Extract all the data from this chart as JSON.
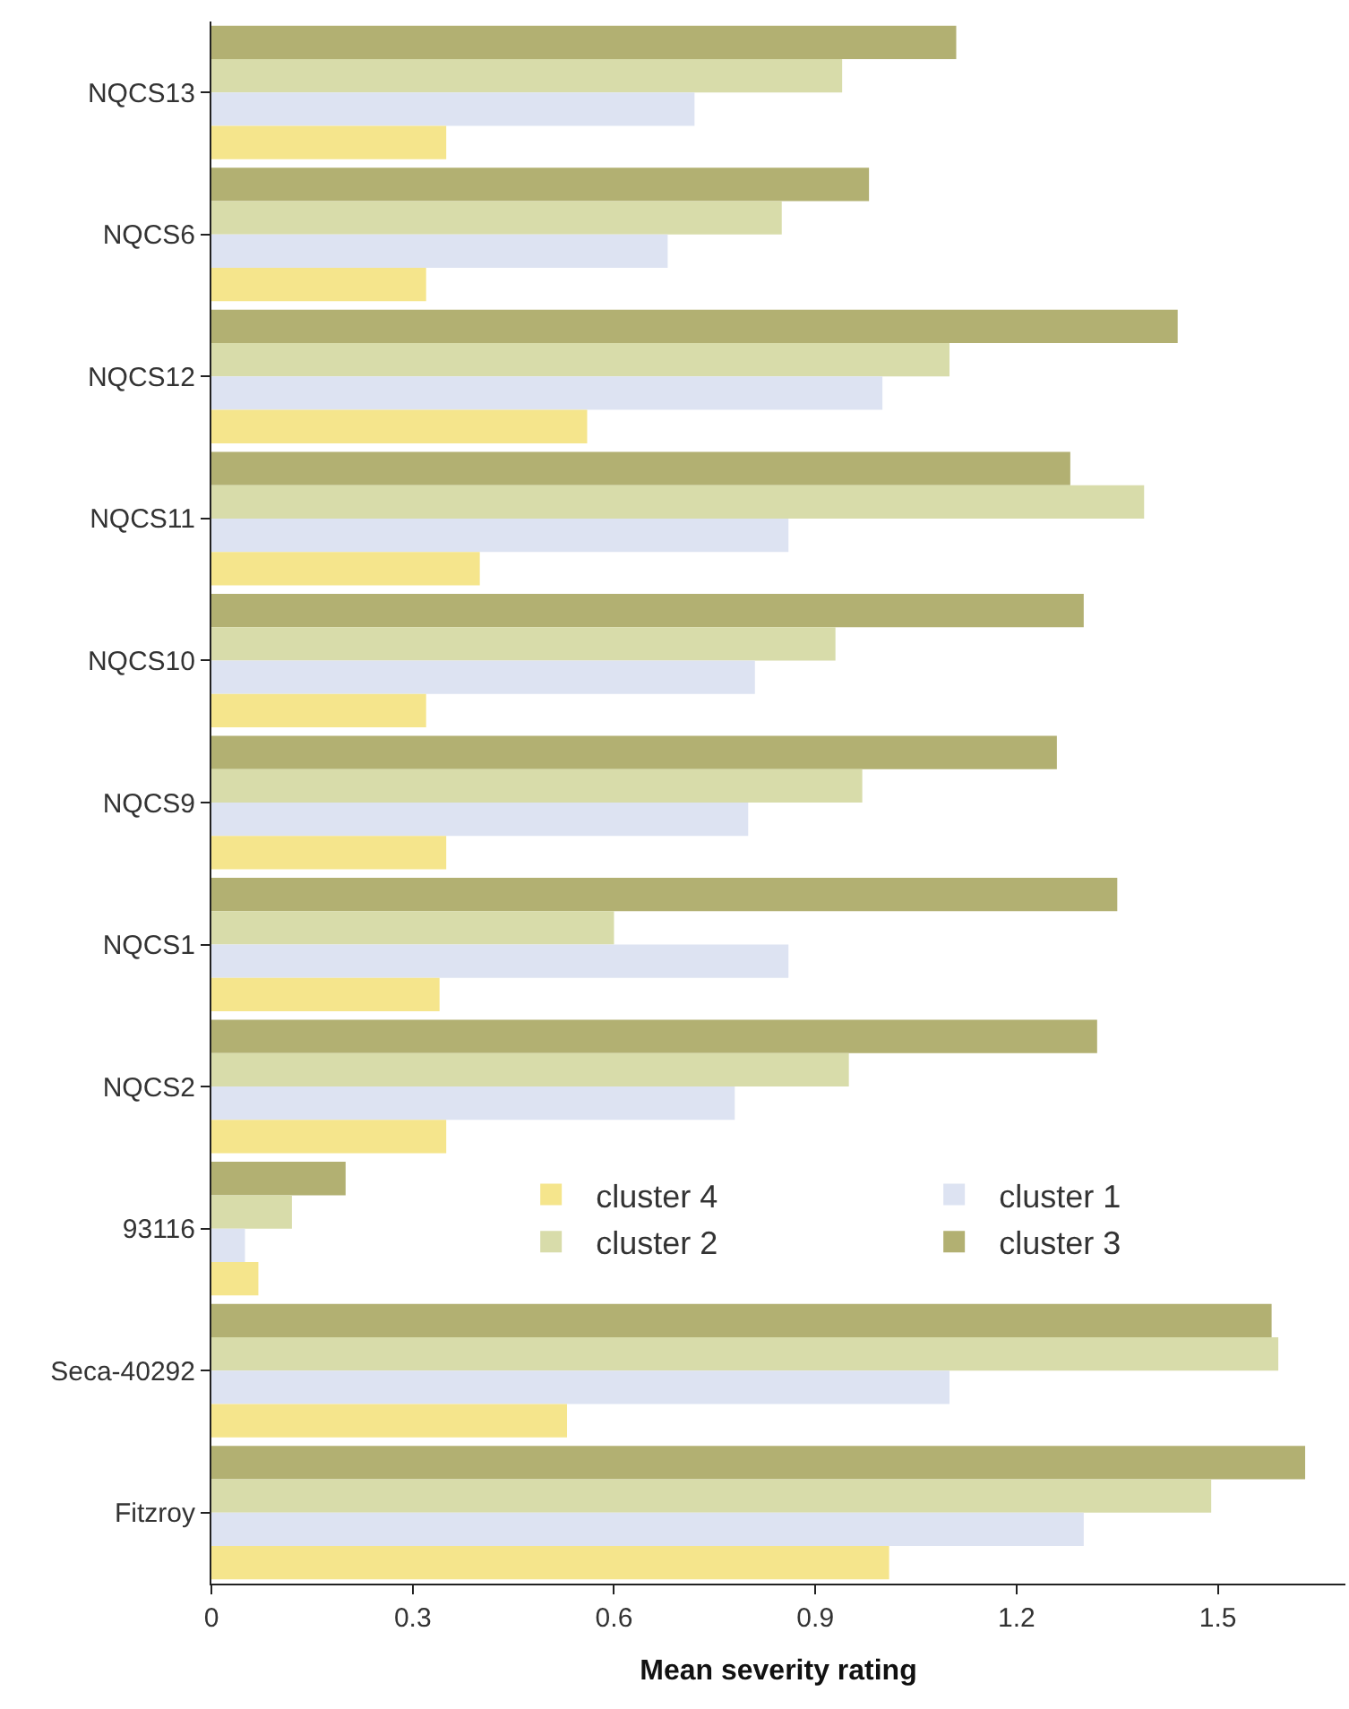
{
  "chart_data": {
    "type": "bar",
    "orientation": "horizontal",
    "xlabel": "Mean severity rating",
    "categories": [
      "NQCS13",
      "NQCS6",
      "NQCS12",
      "NQCS11",
      "NQCS10",
      "NQCS9",
      "NQCS1",
      "NQCS2",
      "93116",
      "Seca-40292",
      "Fitzroy"
    ],
    "series": [
      {
        "name": "cluster 3",
        "color": "#b2b072",
        "values": [
          1.11,
          0.98,
          1.44,
          1.28,
          1.3,
          1.26,
          1.35,
          1.32,
          0.2,
          1.58,
          1.63
        ]
      },
      {
        "name": "cluster 2",
        "color": "#d8dcaa",
        "values": [
          0.94,
          0.85,
          1.1,
          1.39,
          0.93,
          0.97,
          0.6,
          0.95,
          0.12,
          1.59,
          1.49
        ]
      },
      {
        "name": "cluster 1",
        "color": "#dde3f2",
        "values": [
          0.72,
          0.68,
          1.0,
          0.86,
          0.81,
          0.8,
          0.86,
          0.78,
          0.05,
          1.1,
          1.3
        ]
      },
      {
        "name": "cluster 4",
        "color": "#f5e58c",
        "values": [
          0.35,
          0.32,
          0.56,
          0.4,
          0.32,
          0.35,
          0.34,
          0.35,
          0.07,
          0.53,
          1.01
        ]
      }
    ],
    "xlim": [
      0,
      1.69
    ],
    "xticks": [
      0,
      0.3,
      0.6,
      0.9,
      1.2,
      1.5
    ],
    "legend": "bottom"
  }
}
